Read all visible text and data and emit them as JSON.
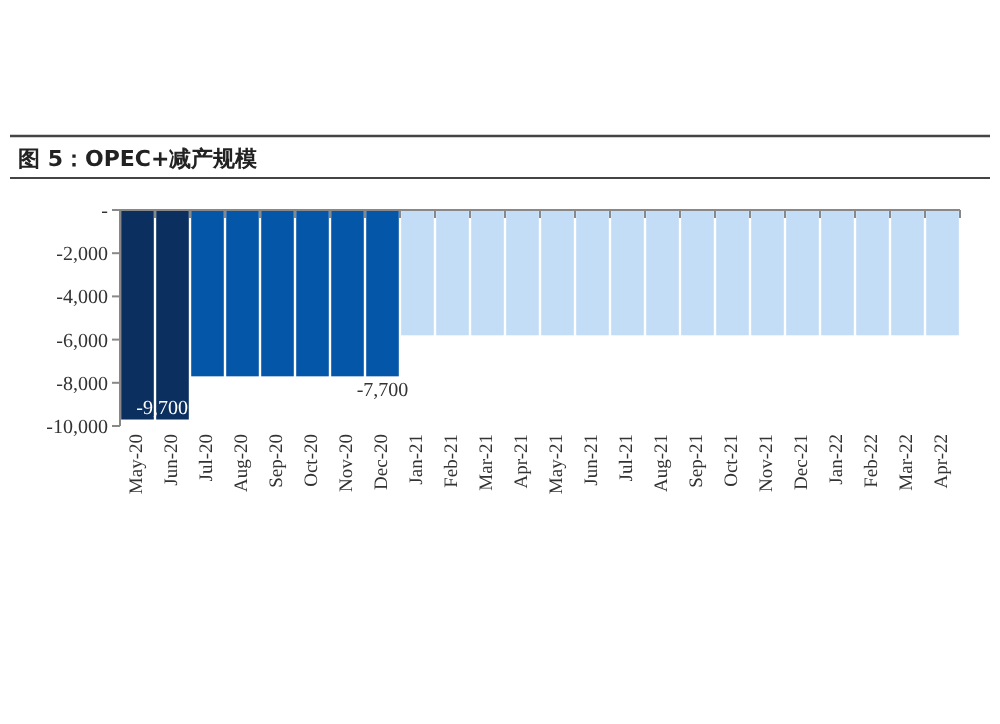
{
  "chart_data": {
    "type": "bar",
    "title": "图 5：OPEC+减产规模",
    "categories": [
      "May-20",
      "Jun-20",
      "Jul-20",
      "Aug-20",
      "Sep-20",
      "Oct-20",
      "Nov-20",
      "Dec-20",
      "Jan-21",
      "Feb-21",
      "Mar-21",
      "Apr-21",
      "May-21",
      "Jun-21",
      "Jul-21",
      "Aug-21",
      "Sep-21",
      "Oct-21",
      "Nov-21",
      "Dec-21",
      "Jan-22",
      "Feb-22",
      "Mar-22",
      "Apr-22"
    ],
    "values": [
      -9700,
      -9700,
      -7700,
      -7700,
      -7700,
      -7700,
      -7700,
      -7700,
      -5800,
      -5800,
      -5800,
      -5800,
      -5800,
      -5800,
      -5800,
      -5800,
      -5800,
      -5800,
      -5800,
      -5800,
      -5800,
      -5800,
      -5800,
      -5800
    ],
    "colors": [
      "#0b2f5e",
      "#0b2f5e",
      "#0456a8",
      "#0456a8",
      "#0456a8",
      "#0456a8",
      "#0456a8",
      "#0456a8",
      "#c4ddf7",
      "#c4ddf7",
      "#c4ddf7",
      "#c4ddf7",
      "#c4ddf7",
      "#c4ddf7",
      "#c4ddf7",
      "#c4ddf7",
      "#c4ddf7",
      "#c4ddf7",
      "#c4ddf7",
      "#c4ddf7",
      "#c4ddf7",
      "#c4ddf7",
      "#c4ddf7",
      "#c4ddf7"
    ],
    "value_labels": [
      null,
      "-9,700",
      null,
      null,
      null,
      null,
      null,
      "-7,700",
      null,
      null,
      null,
      null,
      null,
      null,
      null,
      null,
      null,
      null,
      null,
      null,
      null,
      null,
      null,
      null
    ],
    "ylim": [
      -10000,
      0
    ],
    "yticks": [
      {
        "value": 0,
        "label": "-"
      },
      {
        "value": -2000,
        "label": "-2,000"
      },
      {
        "value": -4000,
        "label": "-4,000"
      },
      {
        "value": -6000,
        "label": "-6,000"
      },
      {
        "value": -8000,
        "label": "-8,000"
      },
      {
        "value": -10000,
        "label": "-10,000"
      }
    ],
    "grid": false
  }
}
